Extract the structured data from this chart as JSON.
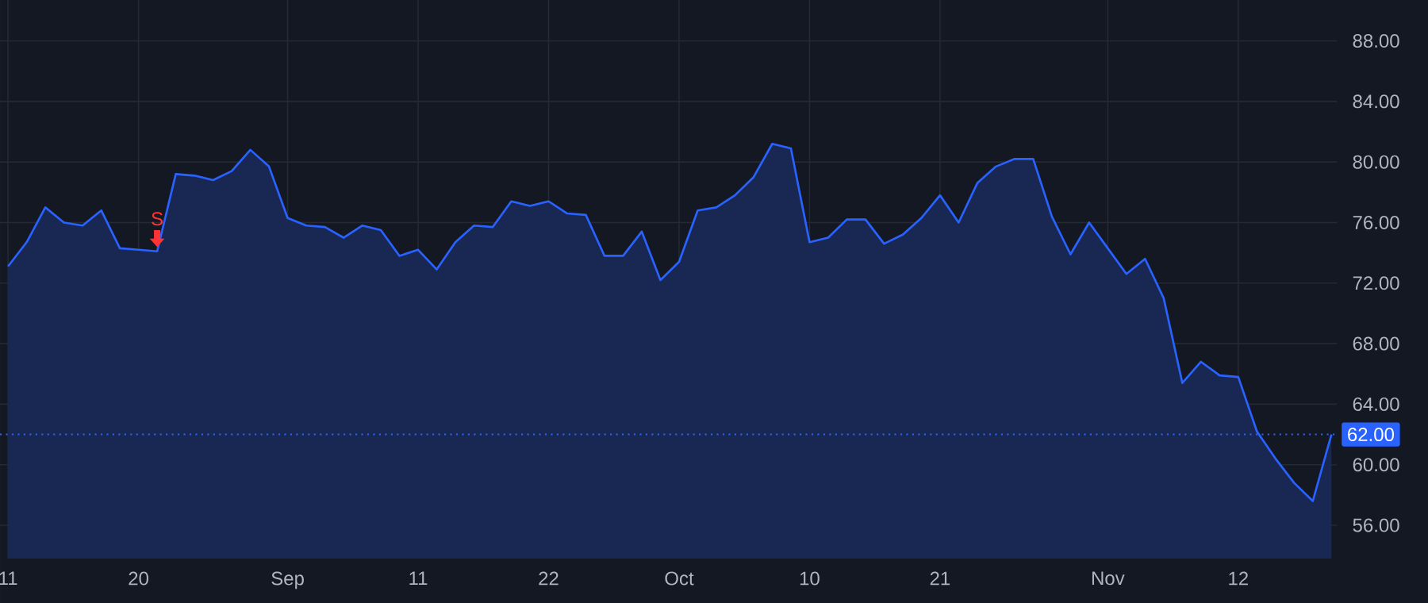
{
  "chart_data": {
    "type": "area",
    "color": "#2962ff",
    "categories": [
      "11",
      null,
      null,
      null,
      null,
      null,
      null,
      "20",
      null,
      null,
      null,
      null,
      null,
      null,
      null,
      "Sep",
      null,
      null,
      null,
      null,
      null,
      null,
      "11",
      null,
      null,
      null,
      null,
      null,
      null,
      "22",
      null,
      null,
      null,
      null,
      null,
      null,
      "Oct",
      null,
      null,
      null,
      null,
      null,
      null,
      "10",
      null,
      null,
      null,
      null,
      null,
      null,
      "21",
      null,
      null,
      null,
      null,
      null,
      null,
      null,
      null,
      "Nov",
      null,
      null,
      null,
      null,
      null,
      null,
      "12",
      null,
      null,
      null,
      null,
      null
    ],
    "values": [
      73.1,
      74.7,
      77.0,
      76.0,
      75.8,
      76.8,
      74.3,
      74.2,
      74.1,
      79.2,
      79.1,
      78.8,
      79.4,
      80.8,
      79.7,
      76.3,
      75.8,
      75.7,
      75.0,
      75.8,
      75.5,
      73.8,
      74.2,
      72.9,
      74.7,
      75.8,
      75.7,
      77.4,
      77.1,
      77.4,
      76.6,
      76.5,
      73.8,
      73.8,
      75.4,
      72.2,
      73.4,
      76.8,
      77.0,
      77.8,
      79.0,
      81.2,
      80.9,
      74.7,
      75.0,
      76.2,
      76.2,
      74.6,
      75.2,
      76.3,
      77.8,
      76.0,
      78.6,
      79.7,
      80.2,
      80.2,
      76.4,
      73.9,
      76.0,
      74.3,
      72.6,
      73.6,
      71.0,
      65.4,
      66.8,
      65.9,
      65.8,
      62.2,
      60.4,
      58.8,
      57.6,
      62.0
    ],
    "ylim": [
      53.8,
      90.7
    ],
    "yticks": [
      {
        "value": 56,
        "label": "56.00"
      },
      {
        "value": 60,
        "label": "60.00"
      },
      {
        "value": 64,
        "label": "64.00"
      },
      {
        "value": 68,
        "label": "68.00"
      },
      {
        "value": 72,
        "label": "72.00"
      },
      {
        "value": 76,
        "label": "76.00"
      },
      {
        "value": 80,
        "label": "80.00"
      },
      {
        "value": 84,
        "label": "84.00"
      },
      {
        "value": 88,
        "label": "88.00"
      }
    ],
    "ref_lines": [
      {
        "axis": "y",
        "value": 62.0,
        "label": "62.00",
        "color": "#2962ff",
        "line_style": "dotted"
      }
    ],
    "annotations": [
      {
        "text": "S",
        "y": 74.1
      }
    ],
    "grid": true
  }
}
